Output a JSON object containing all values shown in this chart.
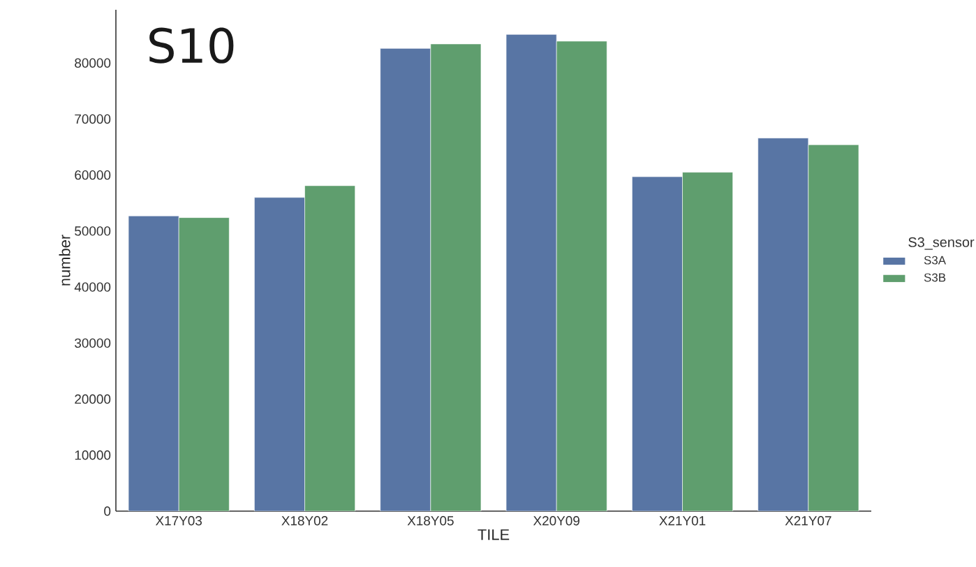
{
  "chart_data": {
    "type": "bar",
    "title": "S10",
    "xlabel": "TILE",
    "ylabel": "number",
    "legend_title": "S3_sensor",
    "categories": [
      "X17Y03",
      "X18Y02",
      "X18Y05",
      "X20Y09",
      "X21Y01",
      "X21Y07"
    ],
    "series": [
      {
        "name": "S3A",
        "color": "#5875a4",
        "values": [
          52700,
          56000,
          82600,
          85100,
          59700,
          66600
        ]
      },
      {
        "name": "S3B",
        "color": "#5f9e6e",
        "values": [
          52400,
          58100,
          83400,
          83900,
          60500,
          65400
        ]
      }
    ],
    "ylim": [
      0,
      89500
    ],
    "yticks": [
      0,
      10000,
      20000,
      30000,
      40000,
      50000,
      60000,
      70000,
      80000
    ],
    "grid": false,
    "legend": "right"
  }
}
